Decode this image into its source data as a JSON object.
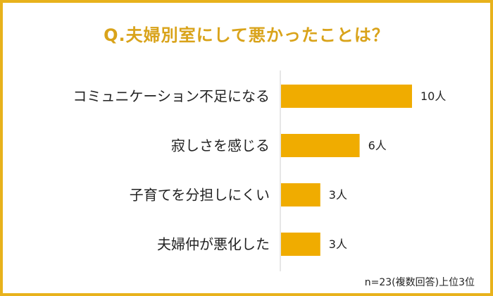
{
  "title": "Q.夫婦別室にして悪かったことは？",
  "note": "n=23(複数回答)上位3位",
  "colors": {
    "bar": "#f0ac00",
    "title": "#d9a31a",
    "border": "#e8b21c",
    "axis": "#cccccc"
  },
  "chart_data": {
    "type": "bar",
    "orientation": "horizontal",
    "categories": [
      "コミュニケーション不足になる",
      "寂しさを感じる",
      "子育てを分担しにくい",
      "夫婦仲が悪化した"
    ],
    "values": [
      10,
      6,
      3,
      3
    ],
    "value_labels": [
      "10人",
      "6人",
      "3人",
      "3人"
    ],
    "unit": "人",
    "xlim": [
      0,
      12
    ],
    "grid": false,
    "legend": "none"
  }
}
